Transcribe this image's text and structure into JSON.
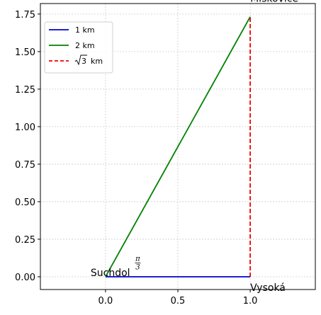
{
  "chart_data": {
    "type": "line",
    "title": "",
    "xlabel": "",
    "ylabel": "",
    "xlim": [
      -0.45,
      1.45
    ],
    "ylim": [
      -0.085,
      1.82
    ],
    "xticks": [
      0.0,
      0.5,
      1.0
    ],
    "xtick_labels": [
      "0.0",
      "0.5",
      "1.0"
    ],
    "yticks": [
      0.0,
      0.25,
      0.5,
      0.75,
      1.0,
      1.25,
      1.5,
      1.75
    ],
    "ytick_labels": [
      "0.00",
      "0.25",
      "0.50",
      "0.75",
      "1.00",
      "1.25",
      "1.50",
      "1.75"
    ],
    "grid": true,
    "legend_position": "top-left",
    "series": [
      {
        "name": "1 km",
        "color": "#0000cc",
        "style": "solid",
        "x": [
          0,
          1
        ],
        "y": [
          0,
          0
        ]
      },
      {
        "name": "2 km",
        "color": "#008000",
        "style": "solid",
        "x": [
          0,
          1
        ],
        "y": [
          0,
          1.732
        ]
      },
      {
        "name_parts": {
          "root": "3",
          "unit": "km"
        },
        "color": "#ee0000",
        "style": "dashed",
        "x": [
          1,
          1
        ],
        "y": [
          0,
          1.732
        ]
      }
    ],
    "annotations": [
      {
        "text": "Suchdol",
        "x": 0,
        "y": 0
      },
      {
        "text": "Vysoká",
        "x": 1,
        "y": 0
      },
      {
        "text": "Miskovice",
        "x": 1,
        "y": 1.732
      },
      {
        "text_num": "π",
        "text_den": "3",
        "x": 0.22,
        "y": 0.12
      }
    ]
  }
}
